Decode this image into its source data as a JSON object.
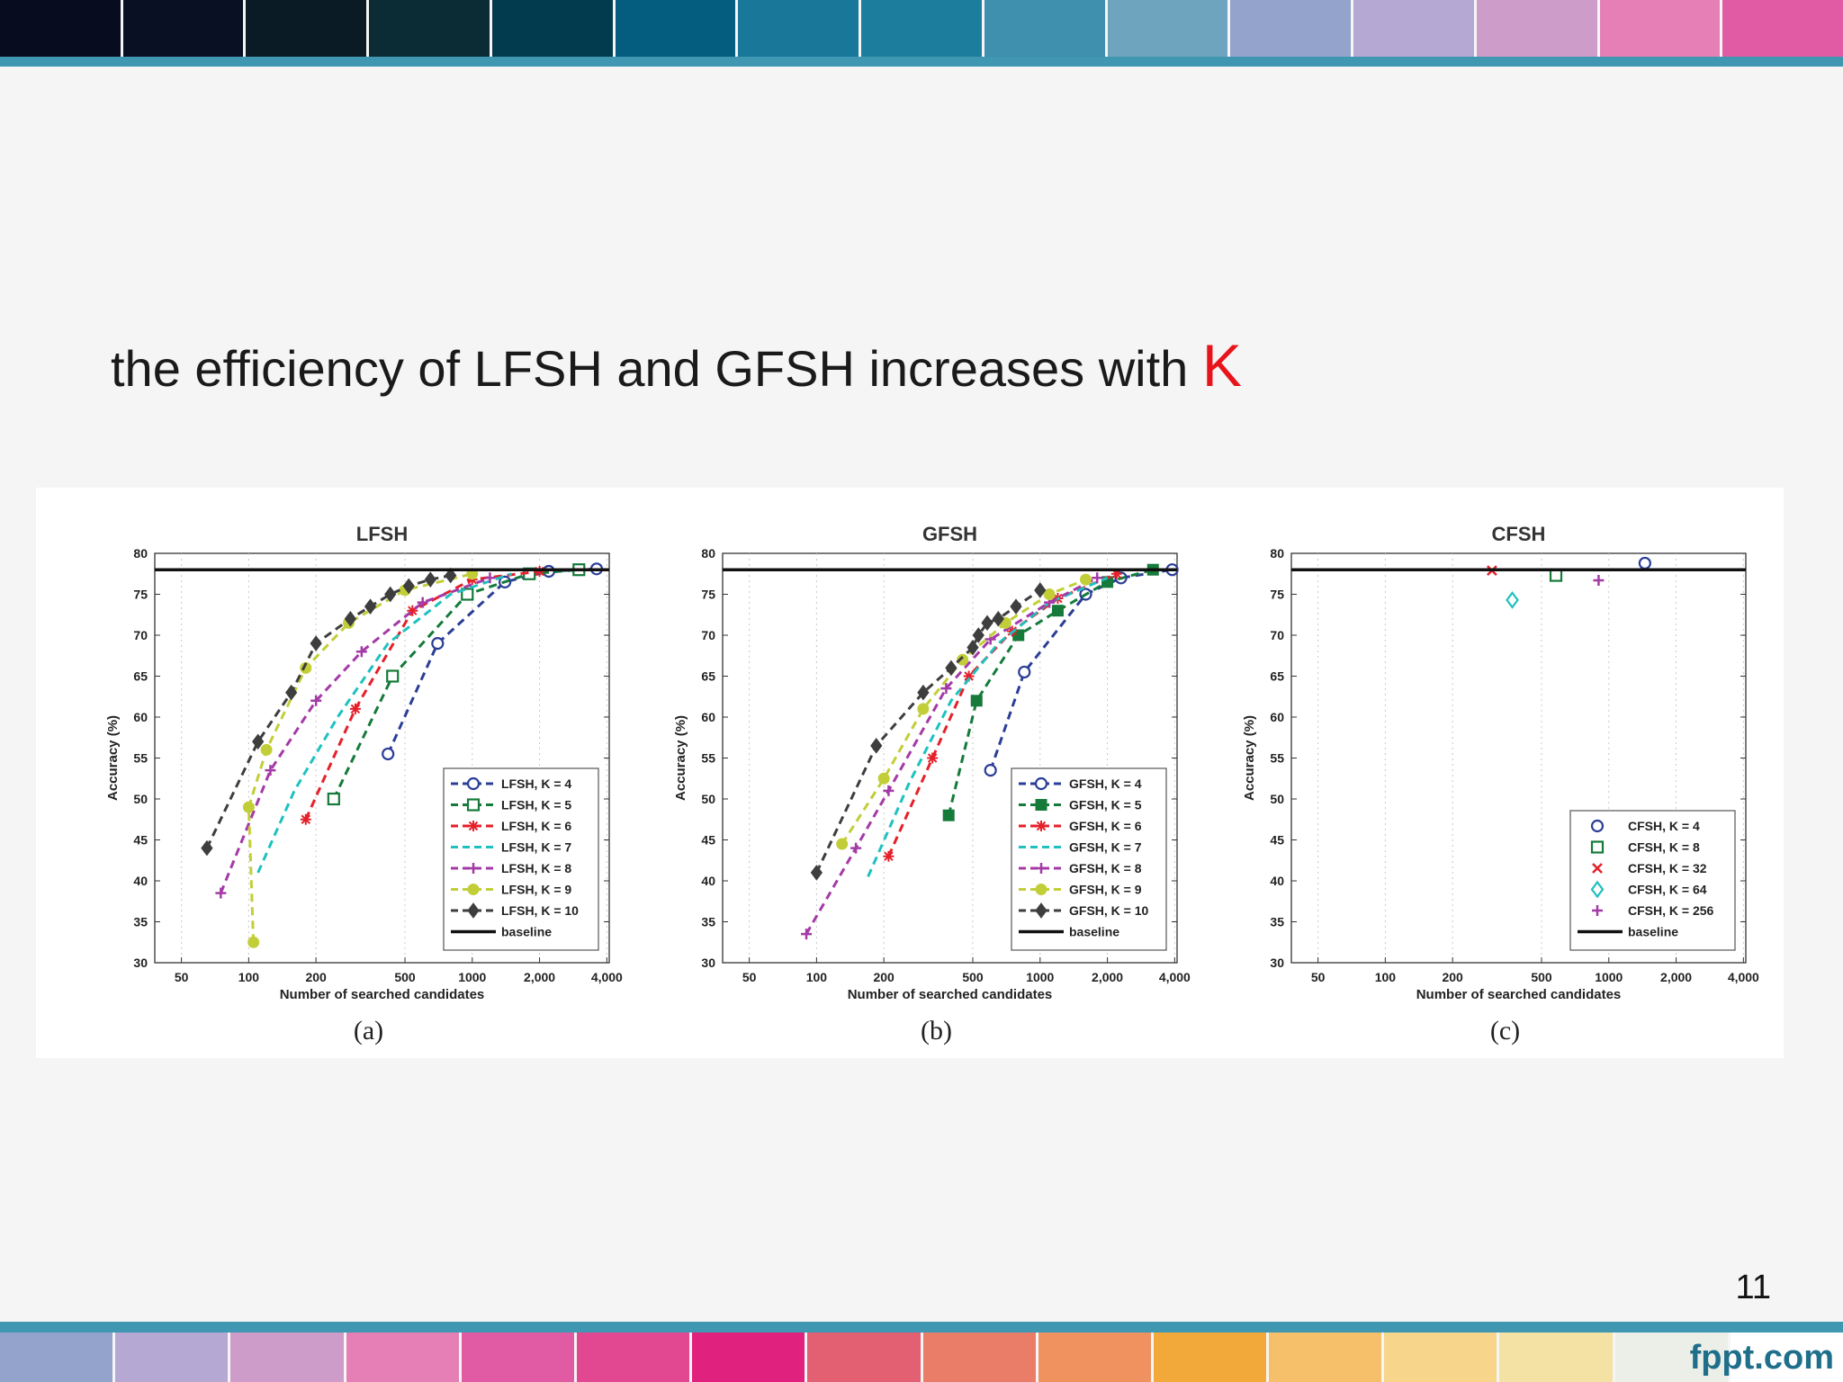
{
  "slide": {
    "headline": "the efficiency of LFSH and GFSH increases with ",
    "headline_emphasis": "K",
    "page_number": "11",
    "brand": "fppt.com",
    "top_strip_colors": [
      "#070c1e",
      "#0a1024",
      "#0a1b26",
      "#0b2b35",
      "#023a4e",
      "#045d7f",
      "#19789a",
      "#1c7e9c",
      "#3f8fae",
      "#6ea4bd",
      "#93a3cc",
      "#b5a8d2",
      "#cd9cc9",
      "#e57fb6",
      "#e05aa4"
    ],
    "bottom_strip_colors": [
      "#93a3cc",
      "#b5a8d2",
      "#cd9cc9",
      "#e57fb6",
      "#e05aa4",
      "#e24791",
      "#e0217d",
      "#e35f72",
      "#ea7d68",
      "#ef925f",
      "#f3a939",
      "#f6c06a",
      "#f7d58a",
      "#f3e2a3",
      "#ecefe8",
      "#ffffff"
    ]
  },
  "colors": {
    "k4": "#2b3e96",
    "k5": "#157a3a",
    "k6": "#e5202a",
    "k7": "#1fc1c0",
    "k8": "#a43aa6",
    "k9": "#c2ce38",
    "k10": "#3e3e3e",
    "k32": "#e5202a",
    "k64": "#1fc1c0",
    "k256": "#a43aa6",
    "baseline": "#111111"
  },
  "chart_data": [
    {
      "type": "line",
      "title": "LFSH",
      "caption": "(a)",
      "xlabel": "Number of searched candidates",
      "ylabel": "Accuracy (%)",
      "x_scale": "log",
      "xlim": [
        38,
        4100
      ],
      "ylim": [
        30,
        80
      ],
      "xticks": [
        50,
        100,
        200,
        500,
        1000,
        2000,
        4000
      ],
      "xtick_labels": [
        "50",
        "100",
        "200",
        "500",
        "1000",
        "2,000",
        "4,000"
      ],
      "yticks": [
        30,
        35,
        40,
        45,
        50,
        55,
        60,
        65,
        70,
        75,
        80
      ],
      "legend": "bottom-right",
      "baseline": 78,
      "series": [
        {
          "name": "LFSH, K = 4",
          "color_key": "k4",
          "marker": "circle-open",
          "x": [
            420,
            700,
            1400,
            2200,
            3600
          ],
          "y": [
            55.5,
            69,
            76.5,
            77.8,
            78.1
          ]
        },
        {
          "name": "LFSH, K = 5",
          "color_key": "k5",
          "marker": "square-open",
          "x": [
            240,
            440,
            950,
            1800,
            3000
          ],
          "y": [
            50,
            65,
            75,
            77.5,
            78
          ]
        },
        {
          "name": "LFSH, K = 6",
          "color_key": "k6",
          "marker": "star",
          "x": [
            180,
            300,
            540,
            1000,
            2000
          ],
          "y": [
            47.5,
            61,
            73,
            76.8,
            77.8
          ]
        },
        {
          "name": "LFSH, K = 7",
          "color_key": "k7",
          "marker": "none",
          "x": [
            110,
            160,
            250,
            420,
            800,
            1500
          ],
          "y": [
            41,
            51,
            60,
            69,
            75,
            77.5
          ]
        },
        {
          "name": "LFSH, K = 8",
          "color_key": "k8",
          "marker": "plus",
          "x": [
            75,
            125,
            200,
            320,
            600,
            1200
          ],
          "y": [
            38.5,
            53.5,
            62,
            68,
            74,
            77
          ]
        },
        {
          "name": "LFSH, K = 9",
          "color_key": "k9",
          "marker": "circle-filled",
          "x": [
            105,
            100,
            120,
            180,
            280,
            500,
            1000
          ],
          "y": [
            32.5,
            49,
            56,
            66,
            71.5,
            75.5,
            77.5
          ]
        },
        {
          "name": "LFSH, K = 10",
          "color_key": "k10",
          "marker": "diamond-filled",
          "x": [
            65,
            110,
            155,
            200,
            285,
            350,
            430,
            520,
            650,
            800
          ],
          "y": [
            44,
            57,
            63,
            69,
            72,
            73.5,
            75,
            76,
            76.8,
            77.3
          ]
        },
        {
          "name": "baseline",
          "color_key": "baseline",
          "marker": "none",
          "type": "hline",
          "y": 78
        }
      ]
    },
    {
      "type": "line",
      "title": "GFSH",
      "caption": "(b)",
      "xlabel": "Number of searched candidates",
      "ylabel": "Accuracy (%)",
      "x_scale": "log",
      "xlim": [
        38,
        4100
      ],
      "ylim": [
        30,
        80
      ],
      "xticks": [
        50,
        100,
        200,
        500,
        1000,
        2000,
        4000
      ],
      "xtick_labels": [
        "50",
        "100",
        "200",
        "500",
        "1000",
        "2,000",
        "4,000"
      ],
      "yticks": [
        30,
        35,
        40,
        45,
        50,
        55,
        60,
        65,
        70,
        75,
        80
      ],
      "legend": "bottom-right",
      "baseline": 78,
      "series": [
        {
          "name": "GFSH, K = 4",
          "color_key": "k4",
          "marker": "circle-open",
          "x": [
            600,
            850,
            1600,
            2300,
            3900
          ],
          "y": [
            53.5,
            65.5,
            75,
            77,
            78
          ]
        },
        {
          "name": "GFSH, K = 5",
          "color_key": "k5",
          "marker": "square-filled",
          "x": [
            390,
            520,
            800,
            1200,
            2000,
            3200
          ],
          "y": [
            48,
            62,
            70,
            73,
            76.5,
            78
          ]
        },
        {
          "name": "GFSH, K = 6",
          "color_key": "k6",
          "marker": "star",
          "x": [
            210,
            330,
            480,
            750,
            1200,
            2200
          ],
          "y": [
            43,
            55,
            65,
            70.5,
            74.5,
            77.5
          ]
        },
        {
          "name": "GFSH, K = 7",
          "color_key": "k7",
          "marker": "none",
          "x": [
            170,
            260,
            400,
            650,
            1100,
            2000
          ],
          "y": [
            40.5,
            52,
            62,
            69,
            74,
            77
          ]
        },
        {
          "name": "GFSH, K = 8",
          "color_key": "k8",
          "marker": "plus",
          "x": [
            90,
            150,
            210,
            380,
            600,
            1100,
            1800
          ],
          "y": [
            33.5,
            44,
            51,
            63.5,
            69.5,
            74,
            77
          ]
        },
        {
          "name": "GFSH, K = 9",
          "color_key": "k9",
          "marker": "circle-filled",
          "x": [
            130,
            200,
            300,
            450,
            700,
            1100,
            1600
          ],
          "y": [
            44.5,
            52.5,
            61,
            67,
            71.5,
            75,
            76.8
          ]
        },
        {
          "name": "GFSH, K = 10",
          "color_key": "k10",
          "marker": "diamond-filled",
          "x": [
            100,
            185,
            300,
            400,
            500,
            530,
            580,
            650,
            780,
            1000
          ],
          "y": [
            41,
            56.5,
            63,
            66,
            68.5,
            70,
            71.5,
            72,
            73.5,
            75.5
          ]
        },
        {
          "name": "baseline",
          "color_key": "baseline",
          "marker": "none",
          "type": "hline",
          "y": 78
        }
      ]
    },
    {
      "type": "scatter",
      "title": "CFSH",
      "caption": "(c)",
      "xlabel": "Number of searched candidates",
      "ylabel": "Accuracy (%)",
      "x_scale": "log",
      "xlim": [
        38,
        4100
      ],
      "ylim": [
        30,
        80
      ],
      "xticks": [
        50,
        100,
        200,
        500,
        1000,
        2000,
        4000
      ],
      "xtick_labels": [
        "50",
        "100",
        "200",
        "500",
        "1000",
        "2,000",
        "4,000"
      ],
      "yticks": [
        30,
        35,
        40,
        45,
        50,
        55,
        60,
        65,
        70,
        75,
        80
      ],
      "legend": "bottom-right",
      "baseline": 78,
      "series": [
        {
          "name": "CFSH, K = 4",
          "color_key": "k4",
          "marker": "circle-open",
          "x": [
            1450
          ],
          "y": [
            78.8
          ]
        },
        {
          "name": "CFSH, K = 8",
          "color_key": "k5",
          "marker": "square-open",
          "x": [
            580
          ],
          "y": [
            77.3
          ]
        },
        {
          "name": "CFSH, K = 32",
          "color_key": "k32",
          "marker": "x",
          "x": [
            300
          ],
          "y": [
            77.9
          ]
        },
        {
          "name": "CFSH, K = 64",
          "color_key": "k64",
          "marker": "diamond-open",
          "x": [
            370
          ],
          "y": [
            74.3
          ]
        },
        {
          "name": "CFSH, K = 256",
          "color_key": "k256",
          "marker": "plus",
          "x": [
            900
          ],
          "y": [
            76.7
          ]
        },
        {
          "name": "baseline",
          "color_key": "baseline",
          "marker": "none",
          "type": "hline",
          "y": 78
        }
      ]
    }
  ]
}
